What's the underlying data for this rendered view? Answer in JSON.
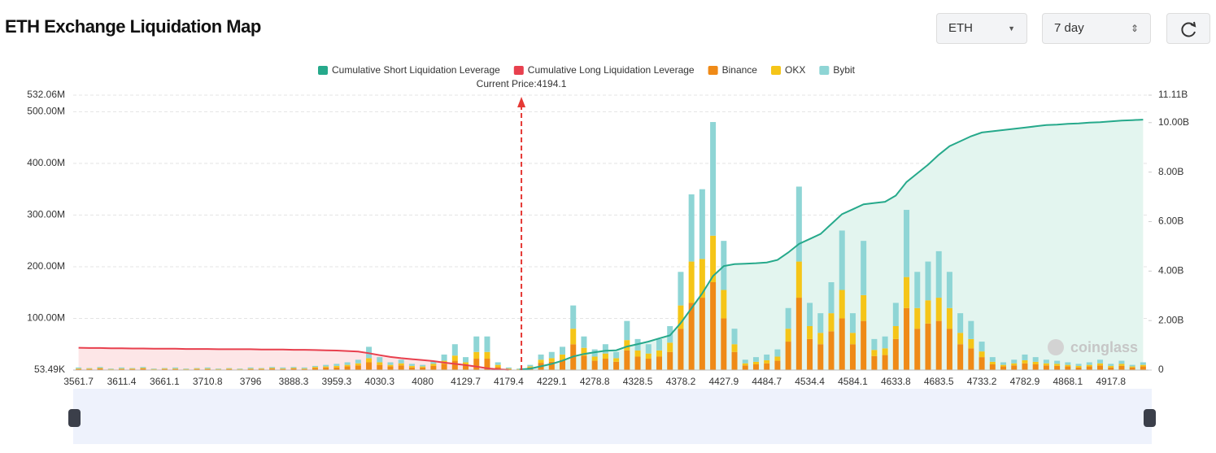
{
  "header": {
    "title": "ETH Exchange Liquidation Map",
    "symbol": "ETH",
    "period": "7 day"
  },
  "chart_data": {
    "type": "bar",
    "current_price": {
      "value": 4194.1,
      "label": "Current Price:4194.1"
    },
    "watermark": "coinglass",
    "categories": [
      "3561.7",
      null,
      null,
      null,
      "3611.4",
      null,
      null,
      null,
      "3661.1",
      null,
      null,
      null,
      "3710.8",
      null,
      null,
      null,
      "3796",
      null,
      null,
      null,
      "3888.3",
      null,
      null,
      null,
      "3959.3",
      null,
      null,
      null,
      "4030.3",
      null,
      null,
      null,
      "4080",
      null,
      null,
      null,
      "4129.7",
      null,
      null,
      null,
      "4179.4",
      null,
      null,
      null,
      "4229.1",
      null,
      null,
      null,
      "4278.8",
      null,
      null,
      null,
      "4328.5",
      null,
      null,
      null,
      "4378.2",
      null,
      null,
      null,
      "4427.9",
      null,
      null,
      null,
      "4484.7",
      null,
      null,
      null,
      "4534.4",
      null,
      null,
      null,
      "4584.1",
      null,
      null,
      null,
      "4633.8",
      null,
      null,
      null,
      "4683.5",
      null,
      null,
      null,
      "4733.2",
      null,
      null,
      null,
      "4782.9",
      null,
      null,
      null,
      "4868.1",
      null,
      null,
      null,
      "4917.8",
      null,
      null,
      null
    ],
    "ylim": [
      0.05349,
      532.06
    ],
    "yticks": [
      {
        "value": 0.05349,
        "label": "53.49K"
      },
      {
        "value": 100,
        "label": "100.00M"
      },
      {
        "value": 200,
        "label": "200.00M"
      },
      {
        "value": 300,
        "label": "300.00M"
      },
      {
        "value": 400,
        "label": "400.00M"
      },
      {
        "value": 500,
        "label": "500.00M"
      },
      {
        "value": 532.06,
        "label": "532.06M"
      }
    ],
    "y2lim": [
      0,
      11.11
    ],
    "y2ticks": [
      0,
      {
        "value": 2,
        "label": "2.00B"
      },
      {
        "value": 4,
        "label": "4.00B"
      },
      {
        "value": 6,
        "label": "6.00B"
      },
      {
        "value": 8,
        "label": "8.00B"
      },
      {
        "value": 10,
        "label": "10.00B"
      },
      {
        "value": 11.11,
        "label": "11.11B"
      }
    ],
    "grid": true,
    "series": [
      {
        "name": "Cumulative Short Liquidation Leverage",
        "type": "line",
        "axis": "y2",
        "color": "#26a98b",
        "fill": "#e3f5ef",
        "values": [
          null,
          null,
          null,
          null,
          null,
          null,
          null,
          null,
          null,
          null,
          null,
          null,
          null,
          null,
          null,
          null,
          null,
          null,
          null,
          null,
          null,
          null,
          null,
          null,
          null,
          null,
          null,
          null,
          null,
          null,
          null,
          null,
          null,
          null,
          null,
          null,
          null,
          null,
          null,
          null,
          null,
          0.02,
          0.06,
          0.15,
          0.25,
          0.38,
          0.55,
          0.65,
          0.72,
          0.78,
          0.8,
          0.95,
          1.05,
          1.15,
          1.28,
          1.4,
          1.9,
          2.5,
          3.1,
          3.8,
          4.2,
          4.28,
          4.3,
          4.32,
          4.35,
          4.45,
          4.75,
          5.1,
          5.3,
          5.5,
          5.9,
          6.3,
          6.5,
          6.7,
          6.75,
          6.8,
          7.05,
          7.6,
          7.95,
          8.3,
          8.7,
          9.05,
          9.25,
          9.45,
          9.6,
          9.65,
          9.7,
          9.75,
          9.8,
          9.85,
          9.9,
          9.92,
          9.95,
          9.97,
          10.0,
          10.02,
          10.05,
          10.08,
          10.1,
          10.12
        ]
      },
      {
        "name": "Cumulative Long Liquidation Leverage",
        "type": "line",
        "axis": "y2",
        "color": "#e8404e",
        "fill": "#fde6e7",
        "values": [
          0.9,
          0.89,
          0.89,
          0.88,
          0.88,
          0.87,
          0.87,
          0.86,
          0.86,
          0.86,
          0.85,
          0.85,
          0.85,
          0.84,
          0.84,
          0.84,
          0.84,
          0.83,
          0.83,
          0.83,
          0.82,
          0.82,
          0.81,
          0.8,
          0.79,
          0.77,
          0.75,
          0.68,
          0.6,
          0.53,
          0.48,
          0.44,
          0.4,
          0.36,
          0.3,
          0.25,
          0.2,
          0.14,
          0.07,
          0.03,
          0.01,
          null,
          null,
          null,
          null,
          null,
          null,
          null,
          null,
          null,
          null,
          null,
          null,
          null,
          null,
          null,
          null,
          null,
          null,
          null,
          null,
          null,
          null,
          null,
          null,
          null,
          null,
          null,
          null,
          null,
          null,
          null,
          null,
          null,
          null,
          null,
          null,
          null,
          null,
          null,
          null,
          null,
          null,
          null,
          null,
          null,
          null,
          null,
          null,
          null,
          null,
          null,
          null,
          null,
          null,
          null,
          null,
          null,
          null,
          null
        ]
      },
      {
        "name": "Binance",
        "type": "bar",
        "color": "#ef8a17",
        "values": [
          2,
          2,
          3,
          1,
          2,
          2,
          3,
          1,
          2,
          2,
          1,
          2,
          2,
          1,
          2,
          1,
          2,
          2,
          3,
          2,
          3,
          2,
          4,
          5,
          5,
          7,
          9,
          15,
          10,
          7,
          9,
          5,
          5,
          8,
          12,
          18,
          10,
          22,
          22,
          6,
          2,
          1,
          5,
          14,
          16,
          20,
          50,
          28,
          18,
          22,
          16,
          38,
          26,
          22,
          26,
          35,
          80,
          130,
          140,
          170,
          100,
          35,
          9,
          11,
          13,
          18,
          55,
          140,
          60,
          50,
          75,
          100,
          50,
          95,
          27,
          29,
          60,
          120,
          80,
          90,
          95,
          80,
          50,
          42,
          25,
          11,
          7,
          9,
          13,
          11,
          9,
          8,
          7,
          5,
          7,
          9,
          5,
          8,
          5,
          7
        ]
      },
      {
        "name": "OKX",
        "type": "bar",
        "color": "#f5c518",
        "values": [
          1,
          1,
          1,
          1,
          1,
          1,
          1,
          1,
          1,
          1,
          1,
          1,
          1,
          1,
          1,
          1,
          1,
          1,
          1,
          1,
          1,
          1,
          2,
          2,
          3,
          3,
          4,
          8,
          5,
          3,
          4,
          3,
          2,
          4,
          6,
          10,
          5,
          13,
          13,
          4,
          1,
          1,
          2,
          6,
          7,
          10,
          30,
          15,
          8,
          10,
          7,
          20,
          12,
          10,
          12,
          18,
          45,
          80,
          75,
          90,
          55,
          15,
          4,
          5,
          6,
          8,
          25,
          70,
          25,
          22,
          35,
          55,
          22,
          50,
          12,
          13,
          25,
          60,
          40,
          45,
          45,
          40,
          22,
          18,
          11,
          5,
          3,
          4,
          6,
          5,
          4,
          4,
          3,
          3,
          3,
          4,
          3,
          4,
          2,
          3
        ]
      },
      {
        "name": "Bybit",
        "type": "bar",
        "color": "#8ed5d5",
        "values": [
          2,
          1,
          2,
          1,
          2,
          1,
          2,
          1,
          1,
          2,
          1,
          1,
          2,
          1,
          1,
          1,
          2,
          1,
          2,
          2,
          2,
          2,
          2,
          3,
          4,
          5,
          7,
          22,
          10,
          5,
          7,
          4,
          3,
          6,
          12,
          22,
          10,
          30,
          30,
          5,
          2,
          1,
          3,
          10,
          12,
          15,
          45,
          22,
          14,
          18,
          12,
          37,
          22,
          18,
          22,
          32,
          65,
          130,
          135,
          220,
          95,
          30,
          7,
          9,
          11,
          14,
          40,
          145,
          45,
          38,
          60,
          115,
          38,
          105,
          21,
          23,
          45,
          130,
          70,
          75,
          90,
          70,
          38,
          35,
          19,
          9,
          5,
          7,
          11,
          9,
          7,
          6,
          5,
          4,
          5,
          7,
          4,
          6,
          3,
          5
        ]
      }
    ]
  }
}
